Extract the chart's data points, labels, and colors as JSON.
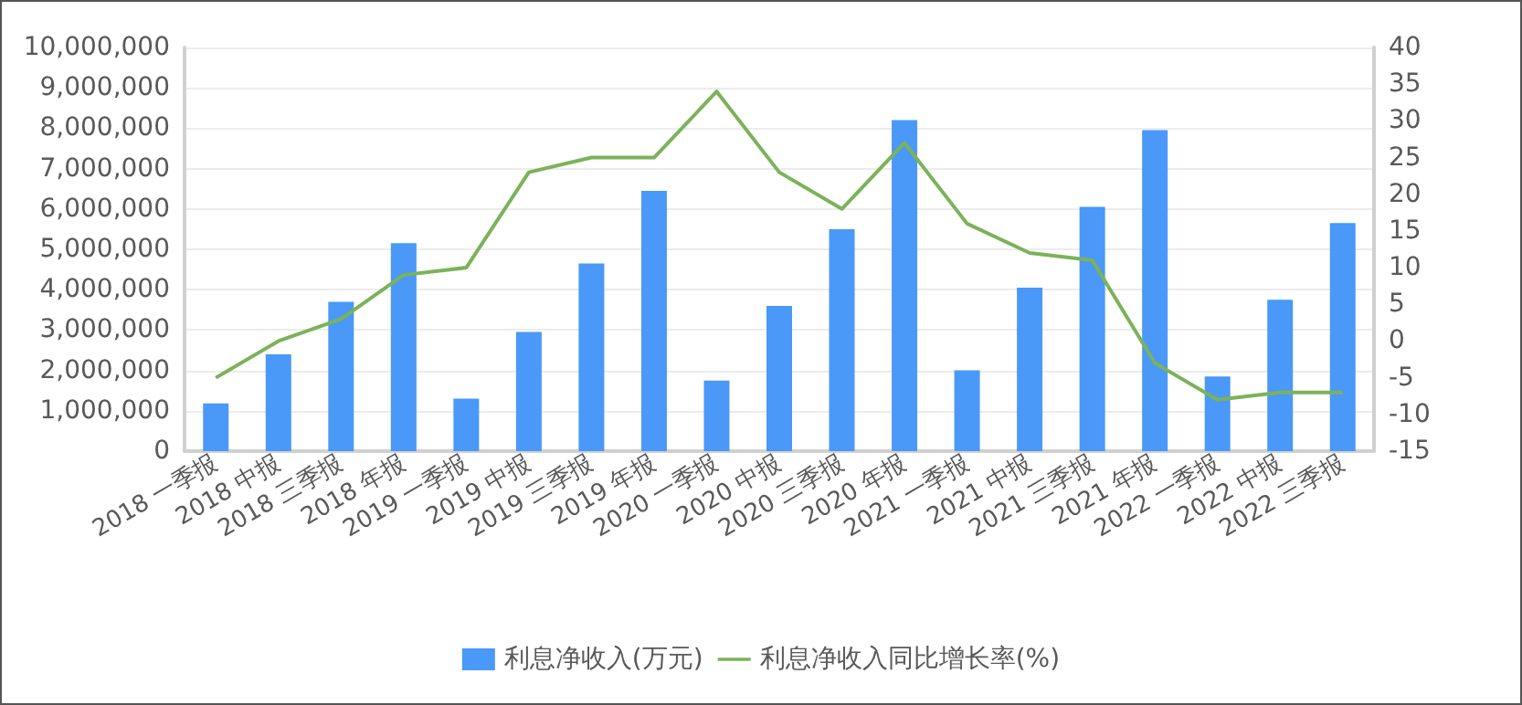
{
  "chart_data": {
    "type": "bar",
    "categories": [
      "2018 一季报",
      "2018 中报",
      "2018 三季报",
      "2018 年报",
      "2019 一季报",
      "2019 中报",
      "2019 三季报",
      "2019 年报",
      "2020 一季报",
      "2020 中报",
      "2020 三季报",
      "2020 年报",
      "2021 一季报",
      "2021 中报",
      "2021 三季报",
      "2021 年报",
      "2022 一季报",
      "2022 中报",
      "2022 三季报"
    ],
    "series": [
      {
        "name": "利息净收入(万元)",
        "color": "#4a98f7",
        "values": [
          1180000,
          2400000,
          3700000,
          5150000,
          1300000,
          2950000,
          4650000,
          6450000,
          1750000,
          3600000,
          5500000,
          8200000,
          2000000,
          4050000,
          6050000,
          7950000,
          1850000,
          3750000,
          5650000
        ]
      },
      {
        "name": "利息净收入同比增长率(%)",
        "type": "line",
        "axis": "y2",
        "color": "#7cb25a",
        "values": [
          -5,
          0,
          3,
          9,
          10,
          23,
          25,
          25,
          34,
          23,
          18,
          27,
          16,
          12,
          11,
          -3,
          -8,
          -7,
          -7
        ]
      }
    ],
    "ylim": [
      0,
      10000000
    ],
    "yticks": [
      0,
      {
        "value": 1000000,
        "label": "1,000,000"
      },
      {
        "value": 2000000,
        "label": "2,000,000"
      },
      {
        "value": 3000000,
        "label": "3,000,000"
      },
      {
        "value": 4000000,
        "label": "4,000,000"
      },
      {
        "value": 5000000,
        "label": "5,000,000"
      },
      {
        "value": 6000000,
        "label": "6,000,000"
      },
      {
        "value": 7000000,
        "label": "7,000,000"
      },
      {
        "value": 8000000,
        "label": "8,000,000"
      },
      {
        "value": 9000000,
        "label": "9,000,000"
      },
      {
        "value": 10000000,
        "label": "10,000,000"
      }
    ],
    "y2lim": [
      -15,
      40
    ],
    "y2ticks": [
      -15,
      -10,
      -5,
      0,
      5,
      10,
      15,
      20,
      25,
      30,
      35,
      40
    ],
    "grid": "y",
    "legend": "bottom",
    "marker": "none"
  }
}
